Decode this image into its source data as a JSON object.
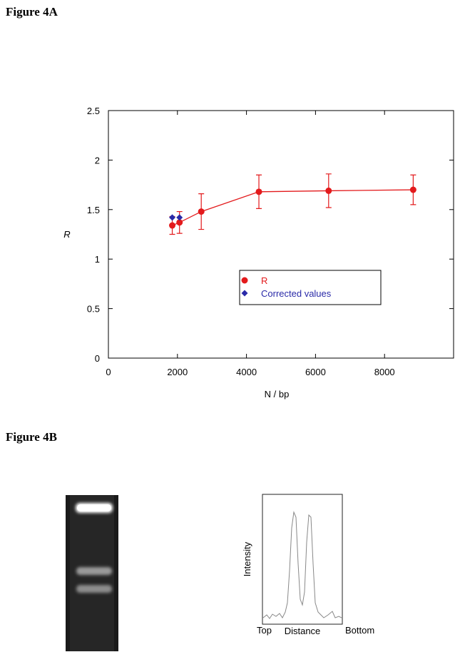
{
  "figure_a_label": "Figure 4A",
  "chart_data": {
    "type": "scatter",
    "x_label": "N / bp",
    "y_label": "R",
    "xlim": [
      0,
      10000
    ],
    "ylim": [
      0,
      2.5
    ],
    "xticks": [
      0,
      2000,
      4000,
      6000,
      8000
    ],
    "yticks": [
      0,
      0.5,
      1,
      1.5,
      2,
      2.5
    ],
    "legend": "bottom-center",
    "series": [
      {
        "name": "R",
        "color": "#e31a1c",
        "marker": "circle",
        "line": true,
        "x": [
          1850,
          2060,
          2690,
          4360,
          6380,
          8830
        ],
        "values": [
          1.34,
          1.37,
          1.48,
          1.68,
          1.69,
          1.7
        ],
        "errors": [
          0.09,
          0.11,
          0.18,
          0.17,
          0.17,
          0.15
        ]
      },
      {
        "name": "Corrected values",
        "color": "#2a2aa8",
        "marker": "diamond",
        "line": false,
        "x": [
          1850,
          2060
        ],
        "values": [
          1.42,
          1.42
        ]
      }
    ]
  },
  "figure_b_label": "Figure 4B",
  "panel_b": {
    "y_label": "Intensity",
    "x_label": "Distance",
    "x_start": "Top",
    "x_end": "Bottom"
  }
}
